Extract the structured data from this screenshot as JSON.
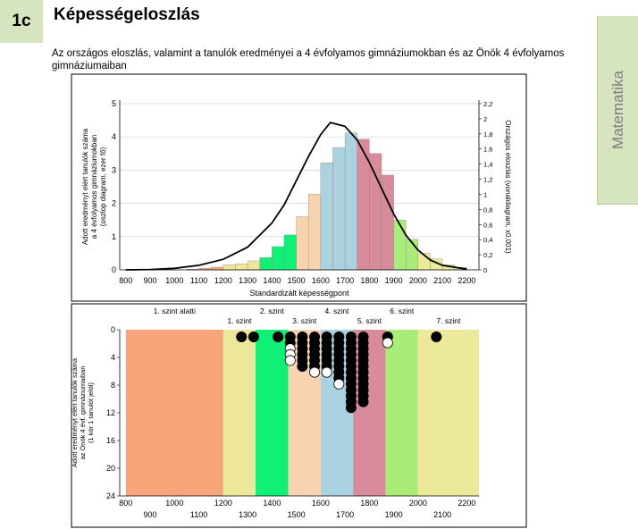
{
  "section": {
    "badge": "1c",
    "title": "Képességeloszlás"
  },
  "intro": "Az országos eloszlás, valamint a tanulók eredményei a 4 évfolyamos gimnáziumokban és az Önök 4 évfolyamos gimnáziumaiban",
  "side_tab": {
    "label": "Matematika"
  },
  "chart_data": [
    {
      "type": "bar",
      "xlabel": "Standardizált képességpont",
      "ylabel_left": [
        "Adott eredményt elért tanulók száma",
        "a 4 évfolyamos gimnáziumokban",
        "(oszlop diagram, ezer fő)"
      ],
      "ylabel_right": "Országos eloszlás (vonaldiagram, x0,001)",
      "x_ticks": [
        "800",
        "900",
        "1000",
        "1100",
        "1200",
        "1300",
        "1400",
        "1500",
        "1600",
        "1700",
        "1800",
        "1900",
        "2000",
        "2100",
        "2200"
      ],
      "y_left_ticks": [
        "0",
        "1",
        "2",
        "3",
        "4",
        "5"
      ],
      "y_right_ticks": [
        "0",
        "0,2",
        "0,4",
        "0,6",
        "0,8",
        "1",
        "1,2",
        "1,4",
        "1,6",
        "1,8",
        "2",
        "2,2"
      ],
      "ylim_left": [
        0,
        5
      ],
      "ylim_right": [
        0,
        2.2
      ],
      "bin_width": 50,
      "bars": [
        {
          "x": 1050,
          "value": 0.02
        },
        {
          "x": 1100,
          "value": 0.05
        },
        {
          "x": 1150,
          "value": 0.08
        },
        {
          "x": 1200,
          "value": 0.15
        },
        {
          "x": 1250,
          "value": 0.18
        },
        {
          "x": 1300,
          "value": 0.27
        },
        {
          "x": 1350,
          "value": 0.37
        },
        {
          "x": 1400,
          "value": 0.7
        },
        {
          "x": 1450,
          "value": 1.05
        },
        {
          "x": 1500,
          "value": 1.6
        },
        {
          "x": 1550,
          "value": 2.28
        },
        {
          "x": 1600,
          "value": 3.22
        },
        {
          "x": 1650,
          "value": 3.68
        },
        {
          "x": 1700,
          "value": 4.12
        },
        {
          "x": 1750,
          "value": 3.93
        },
        {
          "x": 1800,
          "value": 3.5
        },
        {
          "x": 1850,
          "value": 2.85
        },
        {
          "x": 1900,
          "value": 1.5
        },
        {
          "x": 1950,
          "value": 0.92
        },
        {
          "x": 2000,
          "value": 0.5
        },
        {
          "x": 2050,
          "value": 0.33
        },
        {
          "x": 2100,
          "value": 0.15
        },
        {
          "x": 2150,
          "value": 0.07
        }
      ],
      "curve": {
        "x": [
          800,
          900,
          1000,
          1100,
          1200,
          1300,
          1400,
          1450,
          1500,
          1550,
          1600,
          1640,
          1700,
          1750,
          1800,
          1850,
          1900,
          1950,
          2000,
          2050,
          2100,
          2200
        ],
        "y": [
          0.0,
          0.005,
          0.02,
          0.06,
          0.14,
          0.3,
          0.62,
          0.86,
          1.18,
          1.5,
          1.79,
          1.95,
          1.9,
          1.72,
          1.42,
          1.08,
          0.74,
          0.46,
          0.26,
          0.13,
          0.06,
          0.01
        ]
      }
    },
    {
      "type": "scatter",
      "xlabel": "",
      "ylabel": [
        "Adott eredményt elért tanulók száma",
        "az Önök 4 évf. gimnáziumaiban",
        "(1 kör 1 tanulót jelöl)"
      ],
      "levels": [
        {
          "label": "1. szint alatti",
          "from": 800,
          "to": 1200,
          "color": "#f7a57a"
        },
        {
          "label": "1. szint",
          "from": 1200,
          "to": 1333,
          "color": "#ede79c"
        },
        {
          "label": "2. szint",
          "from": 1333,
          "to": 1467,
          "color": "#10ef76"
        },
        {
          "label": "3. szint",
          "from": 1467,
          "to": 1600,
          "color": "#f8d3b0"
        },
        {
          "label": "4. szint",
          "from": 1600,
          "to": 1733,
          "color": "#abd2e0"
        },
        {
          "label": "5. szint",
          "from": 1733,
          "to": 1867,
          "color": "#d88b9a"
        },
        {
          "label": "6. szint",
          "from": 1867,
          "to": 2000,
          "color": "#a9ec78"
        },
        {
          "label": "7. szint",
          "from": 2000,
          "to": 2250,
          "color": "#ede99a"
        }
      ],
      "x_ticks_upper": [
        "800",
        "1000",
        "1200",
        "1400",
        "1600",
        "1800",
        "2000",
        "2200"
      ],
      "x_ticks_lower": [
        "900",
        "1100",
        "1300",
        "1500",
        "1700",
        "1900",
        "2100"
      ],
      "y_ticks": [
        "0",
        "4",
        "8",
        "12",
        "16",
        "20",
        "24"
      ],
      "ylim": [
        0,
        24
      ],
      "students": [
        {
          "x": 1275,
          "pattern": "b"
        },
        {
          "x": 1325,
          "pattern": "b"
        },
        {
          "x": 1425,
          "pattern": "b"
        },
        {
          "x": 1475,
          "pattern": "bbwww"
        },
        {
          "x": 1525,
          "pattern": "bbbbbb"
        },
        {
          "x": 1575,
          "pattern": "bbbbbbw"
        },
        {
          "x": 1625,
          "pattern": "bbbbbbw"
        },
        {
          "x": 1675,
          "pattern": "bbbbbbbbw"
        },
        {
          "x": 1725,
          "pattern": "bbbbbbbbbbbbb"
        },
        {
          "x": 1775,
          "pattern": "bbbbbbbbbbbb"
        },
        {
          "x": 1875,
          "pattern": "bw"
        },
        {
          "x": 2075,
          "pattern": "b"
        }
      ]
    }
  ]
}
